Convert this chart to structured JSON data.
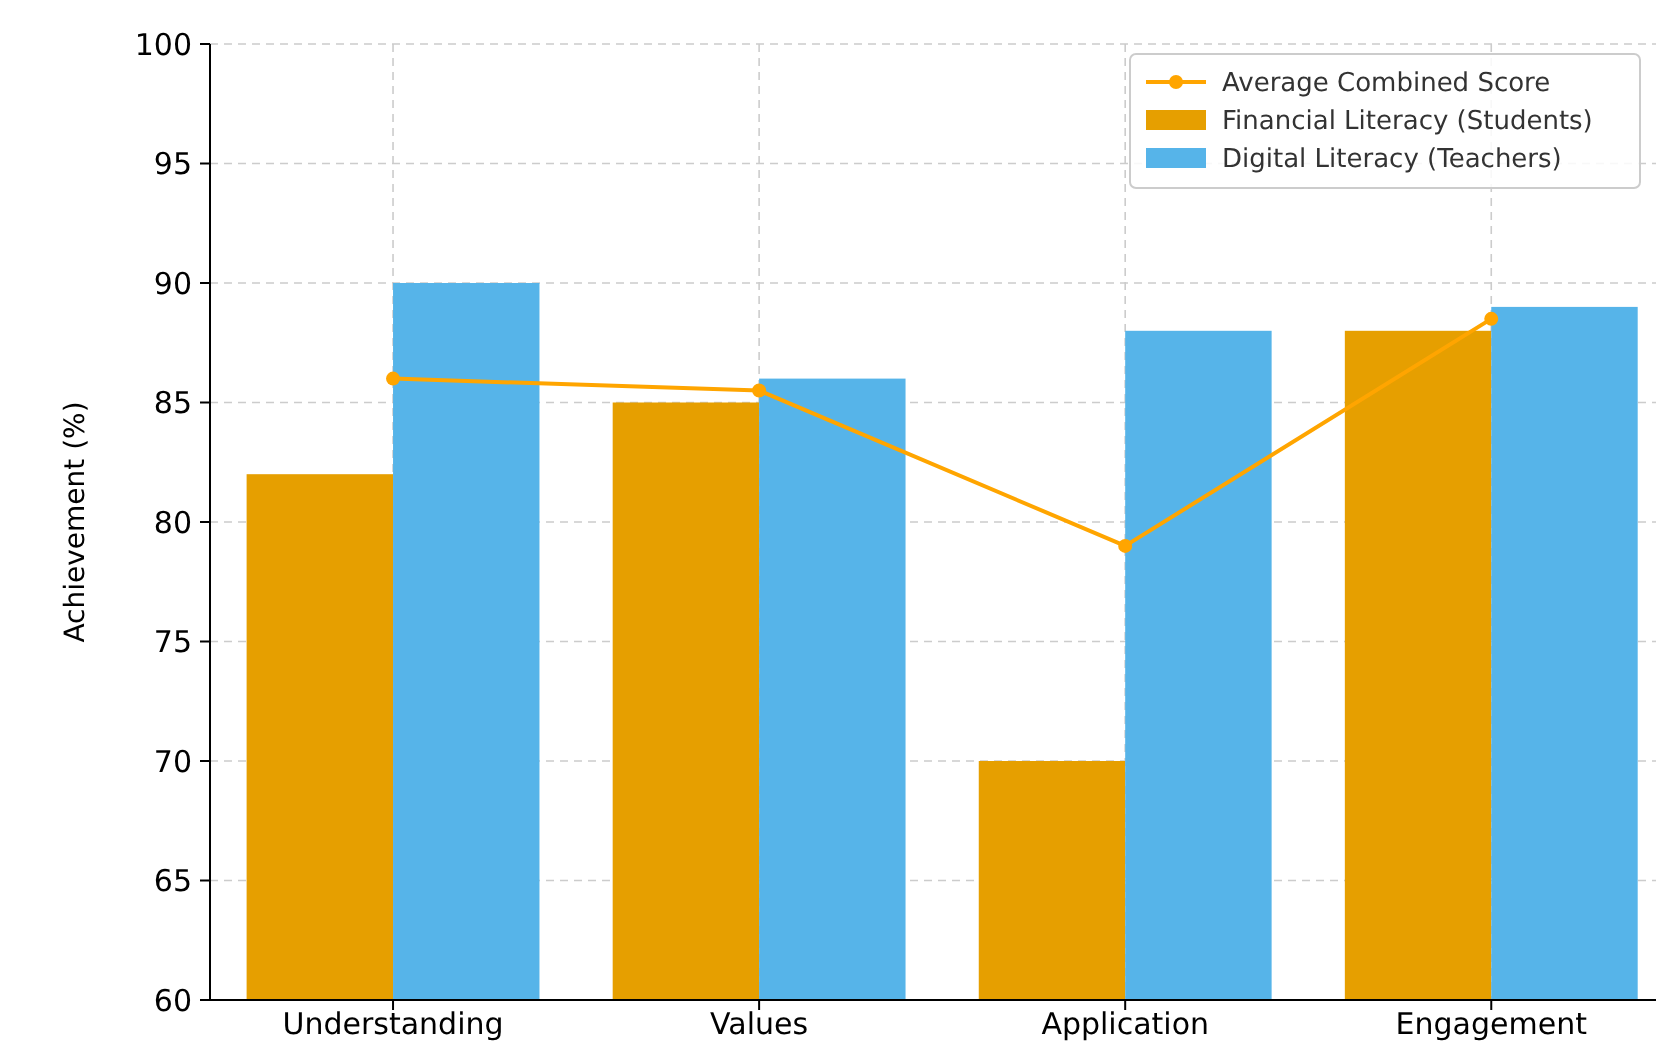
{
  "chart_data": {
    "type": "bar",
    "categories": [
      "Understanding",
      "Values",
      "Application",
      "Engagement"
    ],
    "ylabel": "Achievement (%)",
    "ylim": [
      60,
      100
    ],
    "yticks": [
      60,
      65,
      70,
      75,
      80,
      85,
      90,
      95,
      100
    ],
    "grid": true,
    "legend": "top right",
    "series": [
      {
        "name": "Average Combined Score",
        "type": "line",
        "color": "#ffa500",
        "values": [
          86,
          85.5,
          79,
          88.5
        ],
        "marker": "circle"
      },
      {
        "name": "Financial Literacy (Students)",
        "color": "#e69f00",
        "values": [
          82,
          85,
          70,
          88
        ]
      },
      {
        "name": "Digital Literacy (Teachers)",
        "color": "#56b4e9",
        "values": [
          90,
          86,
          88,
          89
        ]
      }
    ]
  }
}
